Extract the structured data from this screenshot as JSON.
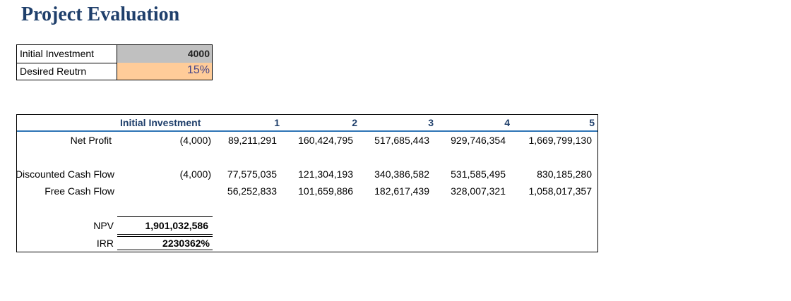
{
  "title": "Project Evaluation",
  "inputs": {
    "initial_investment_label": "Initial Investment",
    "initial_investment_value": "4000",
    "desired_return_label": "Desired Reutrn",
    "desired_return_value": "15%"
  },
  "table": {
    "headers": [
      "Initial Investment",
      "1",
      "2",
      "3",
      "4",
      "5"
    ],
    "net_profit": {
      "label": "Net Profit",
      "values": [
        "(4,000)",
        "89,211,291",
        "160,424,795",
        "517,685,443",
        "929,746,354",
        "1,669,799,130"
      ]
    },
    "discounted_cash_flow": {
      "label": "Discounted Cash Flow",
      "values": [
        "(4,000)",
        "77,575,035",
        "121,304,193",
        "340,386,582",
        "531,585,495",
        "830,185,280"
      ]
    },
    "free_cash_flow": {
      "label": "Free Cash Flow",
      "values": [
        "56,252,833",
        "101,659,886",
        "182,617,439",
        "328,007,321",
        "1,058,017,357"
      ]
    },
    "npv": {
      "label": "NPV",
      "value": "1,901,032,586"
    },
    "irr": {
      "label": "IRR",
      "value": "2230362%"
    }
  },
  "colors": {
    "title": "#1f3f6b",
    "header_text": "#1f3f6b",
    "header_rule": "#2e75b6",
    "investment_fill": "#c0c0c0",
    "return_fill": "#ffcc99"
  }
}
